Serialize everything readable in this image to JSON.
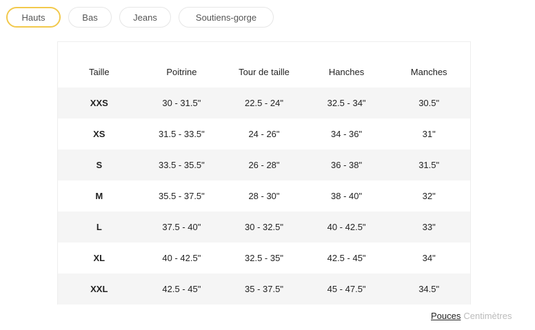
{
  "tabs": [
    {
      "label": "Hauts",
      "active": true
    },
    {
      "label": "Bas"
    },
    {
      "label": "Jeans"
    },
    {
      "label": "Soutiens-gorge"
    }
  ],
  "table": {
    "headers": [
      "Taille",
      "Poitrine",
      "Tour de taille",
      "Hanches",
      "Manches"
    ],
    "rows": [
      [
        "XXS",
        "30 - 31.5\"",
        "22.5 - 24\"",
        "32.5 - 34\"",
        "30.5\""
      ],
      [
        "XS",
        "31.5 - 33.5\"",
        "24 - 26\"",
        "34 - 36\"",
        "31\""
      ],
      [
        "S",
        "33.5 - 35.5\"",
        "26 - 28\"",
        "36 - 38\"",
        "31.5\""
      ],
      [
        "M",
        "35.5 - 37.5\"",
        "28 - 30\"",
        "38 - 40\"",
        "32\""
      ],
      [
        "L",
        "37.5 - 40\"",
        "30 - 32.5\"",
        "40 - 42.5\"",
        "33\""
      ],
      [
        "XL",
        "40 - 42.5\"",
        "32.5 - 35\"",
        "42.5 - 45\"",
        "34\""
      ],
      [
        "XXL",
        "42.5 - 45\"",
        "35 - 37.5\"",
        "45 - 47.5\"",
        "34.5\""
      ]
    ]
  },
  "units": {
    "inches": "Pouces",
    "cm": "Centimètres",
    "active": "inches"
  },
  "colors": {
    "accent": "#f2c94c",
    "stripe": "#f5f5f5"
  }
}
